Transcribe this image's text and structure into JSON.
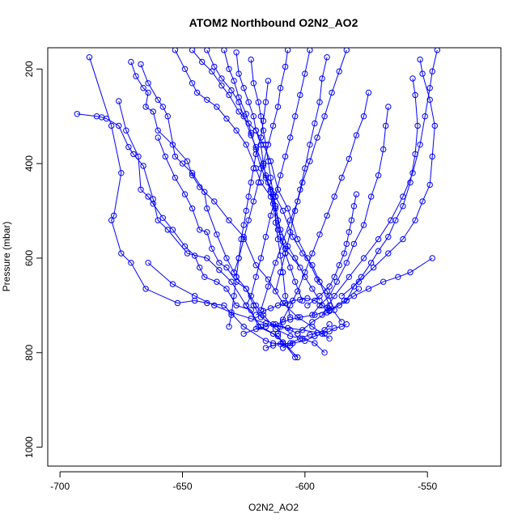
{
  "chart_data": {
    "type": "line",
    "title": "ATOM2 Northbound O2N2_AO2",
    "xlabel": "O2N2_AO2",
    "ylabel": "Pressure (mbar)",
    "xlim": [
      -705,
      -520
    ],
    "ylim": [
      1040,
      155
    ],
    "y_reversed": true,
    "x_ticks": [
      -700,
      -650,
      -600,
      -550
    ],
    "y_ticks": [
      200,
      400,
      600,
      800,
      1000
    ],
    "x_tick_labels": [
      "-700",
      "-650",
      "-600",
      "-550"
    ],
    "y_tick_labels": [
      "200",
      "400",
      "600",
      "800",
      "1000"
    ],
    "grid": false,
    "legend": "none",
    "colors": {
      "series": "#0000ff",
      "axis": "#000000"
    },
    "series": [
      {
        "x": [
          -688,
          -679,
          -675,
          -678,
          -679,
          -675,
          -671,
          -665,
          -652,
          -645,
          -640,
          -633,
          -625,
          -616,
          -613,
          -609,
          -606
        ],
        "y": [
          175,
          320,
          420,
          510,
          520,
          590,
          610,
          665,
          695,
          690,
          695,
          700,
          745,
          775,
          780,
          781,
          785
        ]
      },
      {
        "x": [
          -693,
          -685,
          -683,
          -681,
          -676,
          -672,
          -670,
          -666,
          -662,
          -660,
          -656,
          -648,
          -640,
          -635,
          -630,
          -624,
          -618,
          -611,
          -604
        ],
        "y": [
          295,
          300,
          302,
          305,
          320,
          365,
          380,
          405,
          475,
          520,
          540,
          590,
          600,
          625,
          650,
          700,
          745,
          765,
          810
        ]
      },
      {
        "x": [
          -676,
          -673,
          -668,
          -667,
          -664,
          -662,
          -658,
          -654,
          -649,
          -645,
          -643,
          -641,
          -636,
          -632,
          -628,
          -622,
          -619,
          -613,
          -609,
          -603
        ],
        "y": [
          268,
          330,
          385,
          455,
          470,
          485,
          515,
          540,
          575,
          595,
          620,
          640,
          650,
          665,
          700,
          710,
          745,
          760,
          778,
          810
        ]
      },
      {
        "x": [
          -671,
          -669,
          -666,
          -664,
          -665,
          -662,
          -660,
          -654,
          -648,
          -646,
          -643,
          -637,
          -631,
          -625,
          -620,
          -615,
          -609,
          -603,
          -597,
          -590
        ],
        "y": [
          185,
          215,
          240,
          250,
          280,
          290,
          330,
          360,
          395,
          425,
          450,
          480,
          520,
          555,
          615,
          645,
          695,
          725,
          745,
          770
        ]
      },
      {
        "x": [
          -667,
          -664,
          -660,
          -658,
          -656,
          -653,
          -650,
          -646,
          -641,
          -640,
          -636,
          -632,
          -628,
          -624,
          -621,
          -618,
          -613,
          -607,
          -601,
          -592
        ],
        "y": [
          190,
          230,
          265,
          280,
          300,
          385,
          400,
          420,
          460,
          495,
          550,
          600,
          640,
          665,
          700,
          725,
          740,
          748,
          752,
          760
        ]
      },
      {
        "x": [
          -660,
          -657,
          -653,
          -649,
          -646,
          -643,
          -640,
          -638,
          -635,
          -632,
          -628,
          -624,
          -620,
          -617,
          -612,
          -606,
          -601,
          -596,
          -592
        ],
        "y": [
          345,
          385,
          430,
          465,
          495,
          540,
          545,
          580,
          610,
          620,
          650,
          665,
          700,
          720,
          750,
          765,
          770,
          780,
          800
        ]
      },
      {
        "x": [
          -653,
          -649,
          -646,
          -644,
          -640,
          -636,
          -632,
          -628,
          -624,
          -620,
          -618,
          -614,
          -611,
          -608,
          -602
        ],
        "y": [
          160,
          200,
          230,
          250,
          265,
          280,
          305,
          330,
          360,
          410,
          440,
          470,
          540,
          580,
          620
        ]
      },
      {
        "x": [
          -646,
          -642,
          -638,
          -634,
          -631,
          -627,
          -623,
          -620,
          -617,
          -614,
          -611,
          -607,
          -603,
          -599,
          -595,
          -591,
          -588
        ],
        "y": [
          160,
          185,
          205,
          235,
          255,
          290,
          315,
          330,
          360,
          395,
          455,
          495,
          560,
          600,
          645,
          670,
          710
        ]
      },
      {
        "x": [
          -640,
          -637,
          -634,
          -630,
          -627,
          -625,
          -622,
          -620,
          -617,
          -615,
          -612,
          -609,
          -605,
          -601,
          -597,
          -594,
          -590,
          -585
        ],
        "y": [
          160,
          195,
          220,
          245,
          270,
          300,
          340,
          365,
          405,
          440,
          470,
          500,
          555,
          590,
          615,
          650,
          700,
          735
        ]
      },
      {
        "x": [
          -633,
          -631,
          -629,
          -627,
          -624,
          -622,
          -620,
          -618,
          -616,
          -614,
          -612,
          -610,
          -607,
          -604,
          -600,
          -597,
          -594
        ],
        "y": [
          160,
          200,
          225,
          260,
          295,
          335,
          370,
          410,
          430,
          460,
          490,
          540,
          575,
          600,
          640,
          665,
          690
        ]
      },
      {
        "x": [
          -628,
          -627,
          -625,
          -623,
          -621,
          -620,
          -618,
          -617,
          -616,
          -614,
          -613,
          -611,
          -610,
          -608,
          -606,
          -604,
          -601
        ],
        "y": [
          165,
          210,
          240,
          270,
          300,
          330,
          360,
          400,
          425,
          455,
          485,
          520,
          555,
          590,
          620,
          650,
          690
        ]
      },
      {
        "x": [
          -622,
          -621,
          -619,
          -618,
          -617,
          -616,
          -615,
          -614,
          -613,
          -612,
          -612,
          -611,
          -610,
          -609,
          -608,
          -606
        ],
        "y": [
          180,
          230,
          270,
          300,
          330,
          360,
          395,
          430,
          465,
          495,
          525,
          560,
          595,
          630,
          680,
          725
        ]
      },
      {
        "x": [
          -615,
          -616,
          -617,
          -618,
          -620,
          -621,
          -622,
          -623,
          -624,
          -625,
          -626,
          -627,
          -628,
          -629,
          -630,
          -631
        ],
        "y": [
          225,
          270,
          310,
          345,
          380,
          410,
          440,
          470,
          500,
          530,
          560,
          600,
          640,
          680,
          720,
          745
        ]
      },
      {
        "x": [
          -607,
          -608,
          -610,
          -611,
          -613,
          -615,
          -617,
          -619,
          -621,
          -623,
          -625,
          -627,
          -629
        ],
        "y": [
          160,
          195,
          240,
          280,
          320,
          360,
          400,
          440,
          480,
          520,
          560,
          600,
          630
        ]
      },
      {
        "x": [
          -598,
          -600,
          -602,
          -604,
          -606,
          -608,
          -610,
          -612,
          -614,
          -616,
          -618,
          -620,
          -622,
          -624
        ],
        "y": [
          160,
          210,
          255,
          300,
          345,
          385,
          425,
          470,
          510,
          555,
          600,
          640,
          680,
          700
        ]
      },
      {
        "x": [
          -591,
          -593,
          -594,
          -596,
          -598,
          -600,
          -602,
          -604,
          -606,
          -608,
          -610,
          -612
        ],
        "y": [
          175,
          220,
          270,
          315,
          360,
          410,
          455,
          500,
          545,
          590,
          630,
          670
        ]
      },
      {
        "x": [
          -583,
          -586,
          -589,
          -592,
          -595,
          -598,
          -601,
          -603,
          -606,
          -609,
          -612,
          -615,
          -618
        ],
        "y": [
          160,
          205,
          250,
          300,
          345,
          395,
          440,
          480,
          520,
          565,
          610,
          660,
          710
        ]
      },
      {
        "x": [
          -574,
          -576,
          -579,
          -582,
          -585,
          -588,
          -591,
          -594,
          -597,
          -600,
          -603,
          -606,
          -609,
          -611
        ],
        "y": [
          250,
          300,
          340,
          390,
          430,
          470,
          510,
          550,
          590,
          630,
          670,
          700,
          730,
          760
        ]
      },
      {
        "x": [
          -566,
          -567,
          -568,
          -570,
          -573,
          -576,
          -580,
          -583,
          -587,
          -590,
          -594,
          -597
        ],
        "y": [
          280,
          320,
          370,
          425,
          470,
          530,
          570,
          610,
          650,
          680,
          700,
          720
        ]
      },
      {
        "x": [
          -556,
          -555,
          -554,
          -555,
          -557,
          -560,
          -563,
          -566,
          -570,
          -573,
          -577,
          -580,
          -583
        ],
        "y": [
          220,
          255,
          320,
          380,
          440,
          490,
          520,
          555,
          585,
          610,
          640,
          660,
          690
        ]
      },
      {
        "x": [
          -546,
          -548,
          -549,
          -551,
          -553,
          -556,
          -560,
          -565,
          -570,
          -576,
          -582,
          -588,
          -593
        ],
        "y": [
          160,
          205,
          240,
          300,
          360,
          420,
          470,
          520,
          560,
          600,
          640,
          680,
          720
        ]
      },
      {
        "x": [
          -553,
          -552,
          -549,
          -547,
          -548,
          -549,
          -552,
          -555,
          -560,
          -566,
          -572,
          -578,
          -585
        ],
        "y": [
          180,
          210,
          265,
          320,
          385,
          445,
          480,
          520,
          560,
          590,
          620,
          650,
          680
        ]
      },
      {
        "x": [
          -548,
          -557,
          -562,
          -568,
          -574,
          -580,
          -586,
          -591,
          -597,
          -603
        ],
        "y": [
          600,
          630,
          640,
          650,
          665,
          680,
          700,
          715,
          735,
          760
        ]
      },
      {
        "x": [
          -603,
          -606,
          -610,
          -616,
          -622,
          -630,
          -637,
          -645,
          -654,
          -664
        ],
        "y": [
          760,
          752,
          745,
          738,
          728,
          715,
          700,
          680,
          655,
          610
        ]
      },
      {
        "x": [
          -578,
          -584,
          -590,
          -596,
          -602,
          -606,
          -609,
          -612,
          -616,
          -620,
          -625
        ],
        "y": [
          665,
          690,
          710,
          720,
          725,
          730,
          735,
          740,
          745,
          750,
          760
        ]
      },
      {
        "x": [
          -599,
          -594,
          -590,
          -588,
          -586,
          -584,
          -583,
          -582,
          -581,
          -580,
          -579
        ],
        "y": [
          700,
          680,
          660,
          640,
          615,
          590,
          570,
          545,
          520,
          490,
          465
        ]
      },
      {
        "x": [
          -620,
          -617,
          -614,
          -611,
          -608,
          -605,
          -602,
          -599,
          -596,
          -593,
          -591,
          -590
        ],
        "y": [
          720,
          712,
          706,
          700,
          695,
          690,
          688,
          685,
          690,
          700,
          705,
          712
        ]
      },
      {
        "x": [
          -609,
          -605,
          -600,
          -596,
          -593,
          -590,
          -588,
          -585,
          -583
        ],
        "y": [
          790,
          780,
          775,
          765,
          760,
          755,
          748,
          745,
          740
        ]
      },
      {
        "x": [
          -616,
          -613,
          -610,
          -606,
          -602,
          -598,
          -595,
          -592,
          -590
        ],
        "y": [
          790,
          785,
          782,
          780,
          770,
          762,
          758,
          752,
          740
        ]
      }
    ]
  }
}
